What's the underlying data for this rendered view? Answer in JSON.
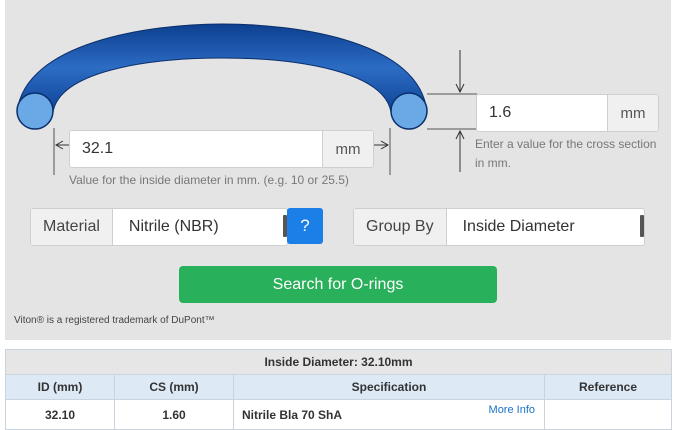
{
  "inside_diameter": {
    "value": "32.1",
    "unit": "mm",
    "hint": "Value for the inside diameter in mm. (e.g. 10 or 25.5)"
  },
  "cross_section": {
    "value": "1.6",
    "unit": "mm",
    "hint_line1": "Enter a value for the cross section",
    "hint_line2": "in mm."
  },
  "material": {
    "label": "Material",
    "selected": "Nitrile (NBR)",
    "help_label": "?"
  },
  "group_by": {
    "label": "Group By",
    "selected": "Inside Diameter"
  },
  "search_button": "Search for O-rings",
  "trademark": "Viton® is a registered trademark of DuPont™",
  "results": {
    "caption": "Inside Diameter: 32.10mm",
    "columns": [
      "ID (mm)",
      "CS (mm)",
      "Specification",
      "Reference"
    ],
    "rows": [
      {
        "id": "32.10",
        "cs": "1.60",
        "spec": "Nitrile Bla 70 ShA",
        "more": "More Info",
        "ref": ""
      }
    ]
  },
  "colors": {
    "ring_dark": "#0d3f8f",
    "ring_light": "#4d8ed6",
    "ring_end": "#6aa8e6",
    "search_green": "#29b05a",
    "help_blue": "#1a7fe6"
  }
}
